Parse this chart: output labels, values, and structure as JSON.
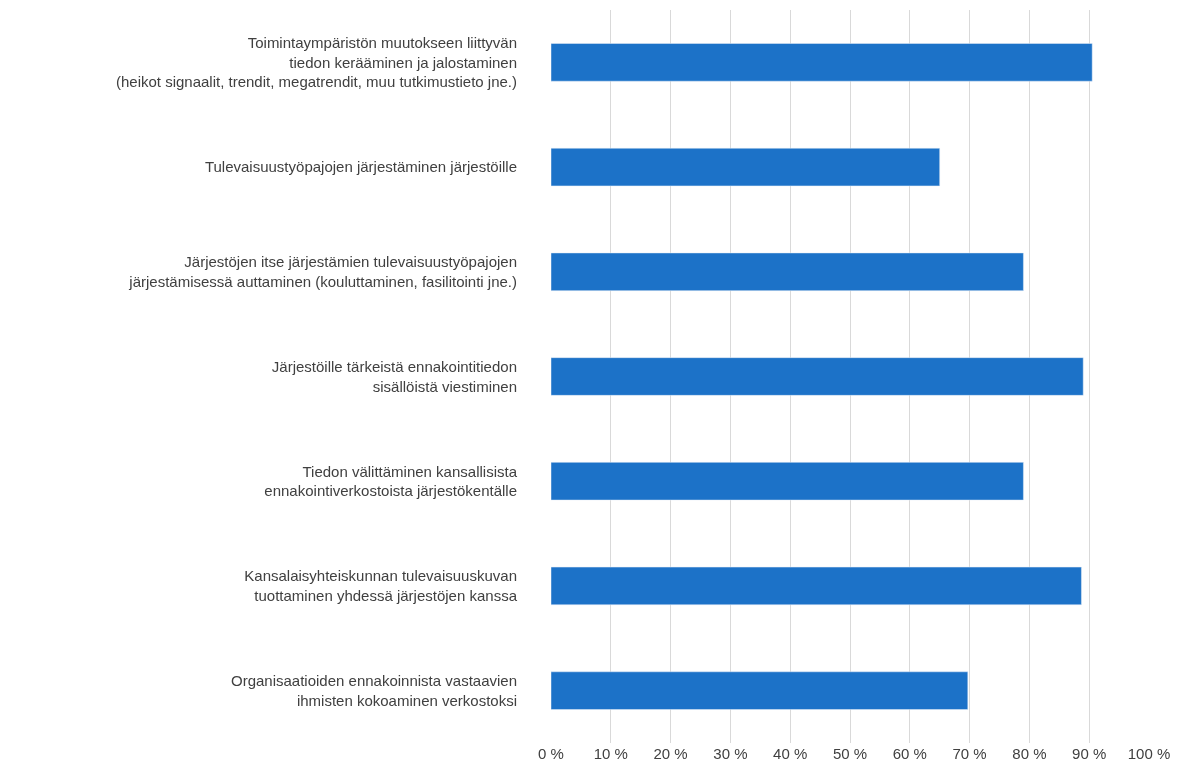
{
  "chart_data": {
    "type": "bar",
    "orientation": "horizontal",
    "categories": [
      "Toimintaympäristön muutokseen liittyvän\ntiedon kerääminen ja jalostaminen\n(heikot signaalit, trendit, megatrendit, muu tutkimustieto jne.)",
      "Tulevaisuustyöpajojen järjestäminen järjestöille",
      "Järjestöjen itse järjestämien tulevaisuustyöpajojen\njärjestämisessä auttaminen (kouluttaminen, fasilitointi jne.)",
      "Järjestöille tärkeistä ennakointitiedon\nsisällöistä viestiminen",
      "Tiedon välittäminen kansallisista\nennakointiverkostoista järjestökentälle",
      "Kansalaisyhteiskunnan tulevaisuuskuvan\ntuottaminen yhdessä järjestöjen kanssa",
      "Organisaatioiden ennakoinnista vastaavien\nihmisten kokoaminen verkostoksi"
    ],
    "values": [
      90.5,
      65,
      79,
      89,
      79,
      88.7,
      69.7
    ],
    "color": "#1c72c8",
    "xlim": [
      0,
      100
    ],
    "xticks": [
      {
        "value": 0,
        "label": "0 %"
      },
      {
        "value": 10,
        "label": "10 %"
      },
      {
        "value": 20,
        "label": "20 %"
      },
      {
        "value": 30,
        "label": "30 %"
      },
      {
        "value": 40,
        "label": "40 %"
      },
      {
        "value": 50,
        "label": "50 %"
      },
      {
        "value": 60,
        "label": "60 %"
      },
      {
        "value": 70,
        "label": "70 %"
      },
      {
        "value": 80,
        "label": "80 %"
      },
      {
        "value": 90,
        "label": "90 %"
      },
      {
        "value": 100,
        "label": "100 %"
      }
    ],
    "grid": "x"
  }
}
